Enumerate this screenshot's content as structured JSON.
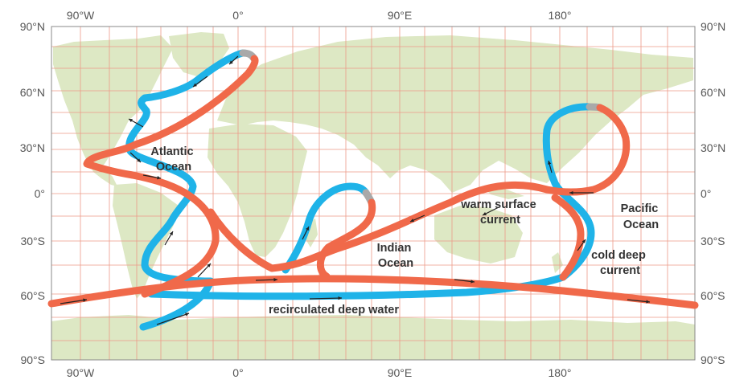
{
  "map": {
    "colors": {
      "ocean": "#ffffff",
      "land": "#dde8c4",
      "grid": "#ec9a88",
      "border": "#8a8a8a",
      "warm_current": "#f0694a",
      "cold_current": "#1fb3e8",
      "transition": "#a9a9a9",
      "arrow": "#222222"
    },
    "axes": {
      "top_longitudes": [
        "90°W",
        "0°",
        "90°E",
        "180°"
      ],
      "bottom_longitudes": [
        "90°W",
        "0°",
        "90°E",
        "180°"
      ],
      "left_latitudes": [
        "90°N",
        "60°N",
        "30°N",
        "0°",
        "30°S",
        "60°S",
        "90°S"
      ],
      "right_latitudes": [
        "90°N",
        "60°N",
        "30°N",
        "0°",
        "30°S",
        "60°S",
        "90°S"
      ]
    },
    "labels": {
      "atlantic": [
        "Atlantic",
        "Ocean"
      ],
      "indian": [
        "Indian",
        "Ocean"
      ],
      "pacific": [
        "Pacific",
        "Ocean"
      ],
      "warm": [
        "warm surface",
        "current"
      ],
      "cold": [
        "cold deep",
        "current"
      ],
      "recirculated": "recirculated deep water"
    }
  }
}
